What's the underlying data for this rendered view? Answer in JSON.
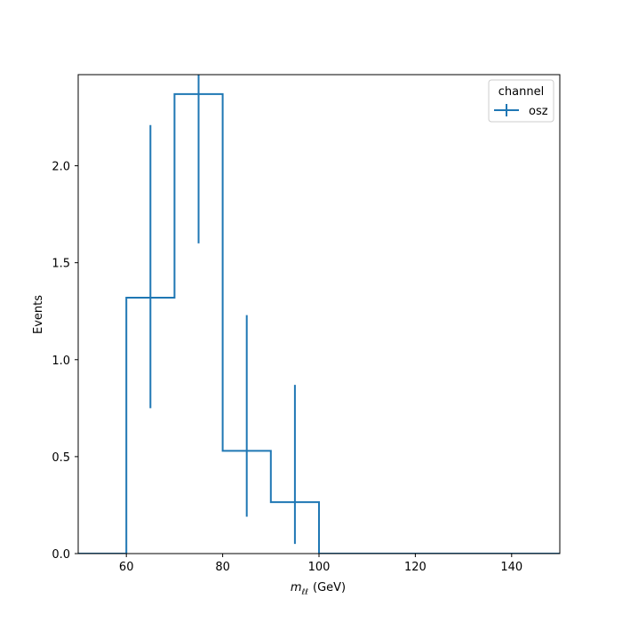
{
  "chart_data": {
    "type": "histogram",
    "xlabel_italic": "m",
    "xlabel_subscript": "ℓℓ",
    "xlabel_unit": "(GeV)",
    "ylabel": "Events",
    "xlim": [
      50,
      150
    ],
    "ylim": [
      0,
      2.47
    ],
    "xticks": [
      60,
      80,
      100,
      120,
      140
    ],
    "xtick_labels": [
      "60",
      "80",
      "100",
      "120",
      "140"
    ],
    "yticks": [
      0.0,
      0.5,
      1.0,
      1.5,
      2.0
    ],
    "ytick_labels": [
      "0.0",
      "0.5",
      "1.0",
      "1.5",
      "2.0"
    ],
    "grid": false,
    "legend": {
      "title": "channel",
      "placement": "top-right"
    },
    "series": [
      {
        "name": "osz",
        "color": "#1f77b4",
        "bin_edges": [
          50,
          60,
          70,
          80,
          90,
          100,
          110,
          120,
          130,
          140,
          150
        ],
        "values": [
          0,
          1.32,
          2.37,
          0.53,
          0.265,
          0,
          0,
          0,
          0,
          0
        ],
        "errors": [
          {
            "x": 65,
            "low": 0.75,
            "high": 2.21
          },
          {
            "x": 75,
            "low": 1.6,
            "high": 2.6
          },
          {
            "x": 85,
            "low": 0.19,
            "high": 1.23
          },
          {
            "x": 95,
            "low": 0.05,
            "high": 0.87
          }
        ]
      }
    ]
  }
}
